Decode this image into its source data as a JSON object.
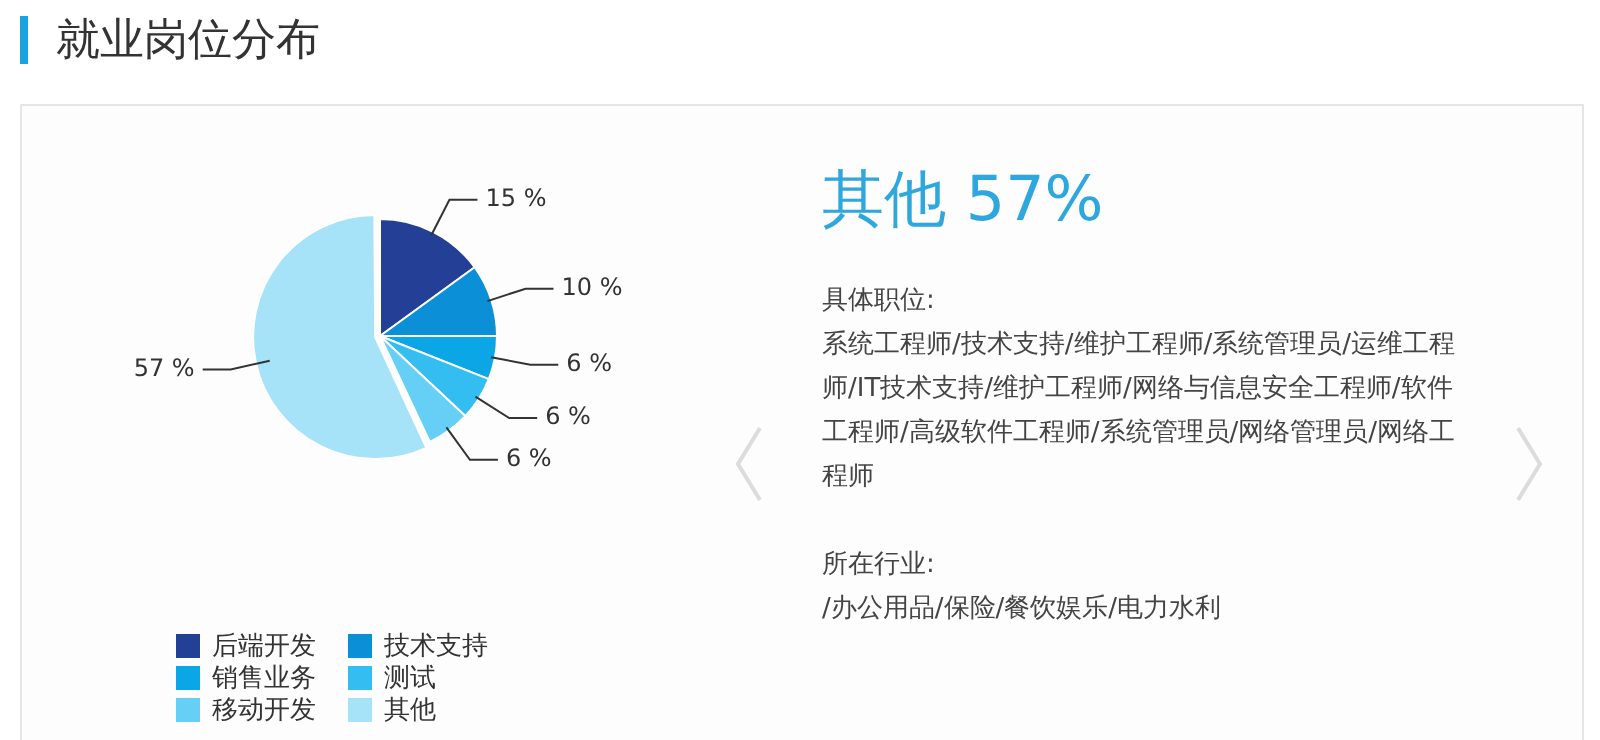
{
  "chart_data": {
    "type": "pie",
    "title": "就业岗位分布",
    "categories": [
      "后端开发",
      "技术支持",
      "销售业务",
      "测试",
      "移动开发",
      "其他"
    ],
    "values": [
      15,
      10,
      6,
      6,
      6,
      57
    ],
    "colors": [
      "#233f96",
      "#0b8fd6",
      "#0aa6e6",
      "#33bdf0",
      "#66cff5",
      "#a6e2f8"
    ],
    "value_labels": [
      "15 %",
      "10 %",
      "6 %",
      "6 %",
      "6 %",
      "57 %"
    ],
    "legend": "bottom",
    "annotations": [
      "其他 57%",
      "具体职位:",
      "系统工程师/技术支持/维护工程师/系统管理员/运维工程师/IT技术支持/维护工程师/网络与信息安全工程师/软件工程师/高级软件工程师/系统管理员/网络管理员/网络工程师",
      "所在行业:",
      "/办公用品/保险/餐饮娱乐/电力水利"
    ]
  }
}
